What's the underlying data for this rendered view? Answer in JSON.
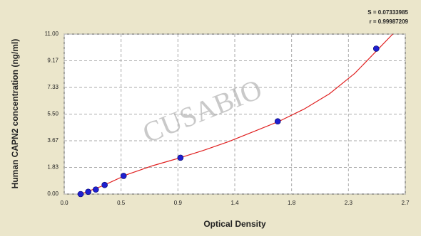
{
  "chart_data": {
    "type": "scatter",
    "x_label": "Optical Density",
    "y_label": "Human CAPN2 concentration (ng/ml)",
    "annotations": [
      "S = 0.07333985",
      "r = 0.99987209"
    ],
    "watermark": "CUSABIO",
    "points": {
      "x": [
        0.13,
        0.19,
        0.25,
        0.32,
        0.47,
        0.92,
        1.69,
        2.47
      ],
      "y": [
        0,
        0.156,
        0.312,
        0.625,
        1.25,
        2.5,
        5,
        10
      ]
    },
    "fit": {
      "x": [
        0.13,
        0.3,
        0.5,
        0.7,
        0.9,
        1.1,
        1.3,
        1.5,
        1.7,
        1.9,
        2.1,
        2.3,
        2.5,
        2.6
      ],
      "y": [
        0,
        0.55,
        1.35,
        1.95,
        2.45,
        3.0,
        3.6,
        4.3,
        5.0,
        5.85,
        6.9,
        8.3,
        10.1,
        11.0
      ]
    },
    "point_color": "#1f1fd0",
    "line_color": "#e02020",
    "xlim": [
      0,
      2.7
    ],
    "xticks": [
      {
        "value": 0,
        "label": "0.0"
      },
      {
        "value": 0.45,
        "label": "0.5"
      },
      {
        "value": 0.9,
        "label": "0.9"
      },
      {
        "value": 1.35,
        "label": "1.4"
      },
      {
        "value": 1.8,
        "label": "1.8"
      },
      {
        "value": 2.25,
        "label": "2.3"
      },
      {
        "value": 2.7,
        "label": "2.7"
      }
    ],
    "ylim": [
      0,
      11
    ],
    "yticks": [
      {
        "value": 0,
        "label": "0.00"
      },
      {
        "value": 1.833,
        "label": "1.83"
      },
      {
        "value": 3.667,
        "label": "3.67"
      },
      {
        "value": 5.5,
        "label": "5.50"
      },
      {
        "value": 7.333,
        "label": "7.33"
      },
      {
        "value": 9.167,
        "label": "9.17"
      },
      {
        "value": 11,
        "label": "11.00"
      }
    ],
    "grid": true
  }
}
